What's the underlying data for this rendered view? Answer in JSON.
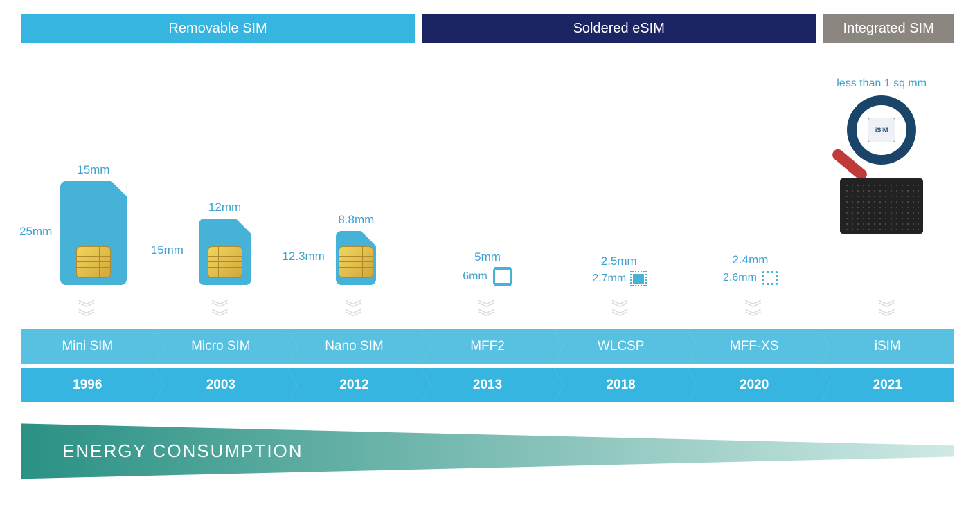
{
  "headers": [
    {
      "label": "Removable SIM",
      "color": "#36b5e0",
      "flex": 3
    },
    {
      "label": "Soldered eSIM",
      "color": "#1c2563",
      "flex": 3
    },
    {
      "label": "Integrated SIM",
      "color": "#8b8680",
      "flex": 1
    }
  ],
  "timeline": [
    {
      "name": "Mini SIM",
      "year": "1996",
      "w": "15mm",
      "h": "25mm",
      "kind": "sim",
      "sim_w": 96,
      "sim_h": 150,
      "name_bg": "#58c0e0",
      "year_bg": "#36b5e0"
    },
    {
      "name": "Micro SIM",
      "year": "2003",
      "w": "12mm",
      "h": "15mm",
      "kind": "sim",
      "sim_w": 76,
      "sim_h": 96,
      "name_bg": "#58c0e0",
      "year_bg": "#36b5e0"
    },
    {
      "name": "Nano SIM",
      "year": "2012",
      "w": "8.8mm",
      "h": "12.3mm",
      "kind": "sim",
      "sim_w": 58,
      "sim_h": 78,
      "name_bg": "#58c0e0",
      "year_bg": "#36b5e0"
    },
    {
      "name": "MFF2",
      "year": "2013",
      "w": "5mm",
      "h": "6mm",
      "kind": "esim1",
      "name_bg": "#58c0e0",
      "year_bg": "#36b5e0"
    },
    {
      "name": "WLCSP",
      "year": "2018",
      "w": "2.5mm",
      "h": "2.7mm",
      "kind": "esim2",
      "name_bg": "#58c0e0",
      "year_bg": "#36b5e0"
    },
    {
      "name": "MFF-XS",
      "year": "2020",
      "w": "2.4mm",
      "h": "2.6mm",
      "kind": "esim3",
      "name_bg": "#58c0e0",
      "year_bg": "#36b5e0"
    },
    {
      "name": "iSIM",
      "year": "2021",
      "note": "less than 1 sq mm",
      "kind": "isim",
      "name_bg": "#58c0e0",
      "year_bg": "#36b5e0"
    }
  ],
  "isim_chip_label": "iSIM",
  "energy_label": "ENERGY CONSUMPTION",
  "energy_wedge_colors": {
    "from": "#2a9184",
    "to": "#cfe9e4"
  },
  "text_color": "#3da2cf"
}
